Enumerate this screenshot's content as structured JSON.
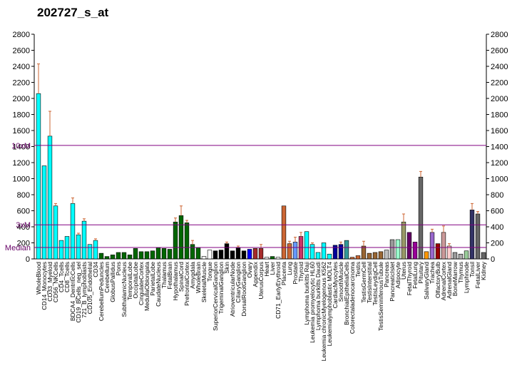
{
  "chart_data": {
    "type": "bar",
    "title": "202727_s_at",
    "ylim": [
      0,
      2800
    ],
    "y_ticks": [
      0,
      200,
      400,
      600,
      800,
      1000,
      1200,
      1400,
      1600,
      1800,
      2000,
      2200,
      2400,
      2600,
      2800
    ],
    "reference_lines": [
      {
        "label": "10xM",
        "value": 1415,
        "color": "#800080"
      },
      {
        "label": "3xM",
        "value": 425,
        "color": "#800080"
      },
      {
        "label": "Median",
        "value": 142,
        "color": "#800080"
      }
    ],
    "categories": [
      "WholeBlood",
      "CD14_Monocytes",
      "CD33_Myeloid",
      "CD56_NKCells",
      "CD4_Tcells",
      "CD8_Tcells",
      "BDCA4_DentriticCells",
      "CD19_BCells_neg_sel",
      "721_B_lymphoblasts",
      "CD105_Endothelial",
      "CD34",
      "CerebellumPeduncles",
      "Cerebellum",
      "GlobusPallidus",
      "Pons",
      "SubthalamicNucleus",
      "TemporalLobe",
      "OccipitalLobe",
      "CingulateCortex",
      "MedullaOblongata",
      "ParietalLobe",
      "CaudateNucleus",
      "Thalamus",
      "FetalBrain",
      "Hypothalamus",
      "SpinalCord",
      "PrefrontalCortex",
      "Amygdala",
      "WholeBrain",
      "SkeletalMuscle",
      "Tongue",
      "SuperiorCervicalGanglion",
      "TrigeminalGanglion",
      "Skin",
      "AtrioventricularNode",
      "CiliaryGanglion",
      "DorsalRootGanglion",
      "Ovary",
      "Appendix",
      "UterusCorpus",
      "Heart",
      "Liver",
      "CD71_EarlyErythroid",
      "Placenta",
      "Lung",
      "Prostate",
      "Thyroid",
      "Lymphoma burkitts Raji",
      "Leukemia promyelocytic HL60",
      "Lymphoma burkitts Daudi",
      "Leukemia chronicMyelogenous K562",
      "Leukemialymphoblastic MOLT4",
      "CardiacMyocytes",
      "SmoothMuscle",
      "BronchialEpithelialCells",
      "Colorectaladenocarcinoma",
      "Testis",
      "TestisGermCell",
      "TestisInterstitial",
      "TestisLeydigCell",
      "TestisSeminiferousTubule",
      "Pancreas",
      "PancreaticIslet",
      "Adipocyte",
      "Uterus",
      "FetalThyroid",
      "FetalLung",
      "Pituitary",
      "SalivaryGland",
      "Trachea",
      "OlfactoryBulb",
      "AdrenalCortex",
      "AdrenalGland",
      "BoneMarrow",
      "Thymus",
      "Lymphnode",
      "Tonsil",
      "FetalLiver",
      "Kidney"
    ],
    "series": [
      {
        "values": [
          2060,
          1160,
          1530,
          660,
          230,
          280,
          690,
          300,
          470,
          180,
          230,
          70,
          30,
          50,
          80,
          80,
          50,
          130,
          90,
          90,
          100,
          140,
          130,
          120,
          460,
          540,
          450,
          180,
          140,
          30,
          110,
          100,
          110,
          190,
          100,
          140,
          100,
          120,
          130,
          130,
          20,
          30,
          20,
          660,
          190,
          210,
          280,
          340,
          180,
          80,
          200,
          60,
          170,
          180,
          230,
          20,
          40,
          160,
          70,
          80,
          90,
          110,
          240,
          240,
          460,
          330,
          210,
          1020,
          90,
          330,
          190,
          330,
          160,
          80,
          60,
          100,
          610,
          560,
          80
        ],
        "colors": [
          "#00ffff",
          "#00ffff",
          "#00ffff",
          "#00ffff",
          "#00ffff",
          "#00ffff",
          "#00ffff",
          "#00ffff",
          "#00ffff",
          "#00ffff",
          "#00ffff",
          "#006600",
          "#006600",
          "#006600",
          "#006600",
          "#006600",
          "#006600",
          "#006600",
          "#006600",
          "#006600",
          "#006600",
          "#006600",
          "#006600",
          "#006600",
          "#006600",
          "#006600",
          "#006600",
          "#006600",
          "#006600",
          "#ffffff",
          "#ffffff",
          "#000000",
          "#000000",
          "#000000",
          "#000000",
          "#000000",
          "#000000",
          "#0000ff",
          "#a52a2a",
          "#a52a2a",
          "#ffffff",
          "#006600",
          "#ffffff",
          "#cc6633",
          "#cc6633",
          "#6699ff",
          "#cc3366",
          "#00ffff",
          "#00ffff",
          "#00ffff",
          "#00ffff",
          "#00ffff",
          "#000099",
          "#000099",
          "#339999",
          "#cc6633",
          "#cc6633",
          "#996633",
          "#996633",
          "#996633",
          "#996633",
          "#c0c0c0",
          "#999999",
          "#99ffcc",
          "#999966",
          "#660066",
          "#990099",
          "#666666",
          "#ff9900",
          "#9966cc",
          "#990000",
          "#cc9999",
          "#ffcccc",
          "#999999",
          "#aaaaaa",
          "#99cc99",
          "#333366",
          "#666666",
          "#666666"
        ],
        "errors": [
          370,
          0,
          310,
          30,
          0,
          0,
          70,
          20,
          30,
          0,
          20,
          0,
          0,
          0,
          0,
          0,
          0,
          0,
          0,
          0,
          0,
          0,
          0,
          0,
          50,
          120,
          30,
          50,
          0,
          0,
          0,
          0,
          0,
          20,
          0,
          20,
          0,
          0,
          0,
          50,
          0,
          0,
          0,
          0,
          30,
          60,
          50,
          0,
          20,
          0,
          0,
          0,
          0,
          30,
          0,
          0,
          0,
          60,
          0,
          0,
          0,
          0,
          0,
          0,
          100,
          0,
          0,
          70,
          0,
          40,
          0,
          80,
          30,
          0,
          0,
          0,
          80,
          30,
          0
        ]
      }
    ]
  }
}
